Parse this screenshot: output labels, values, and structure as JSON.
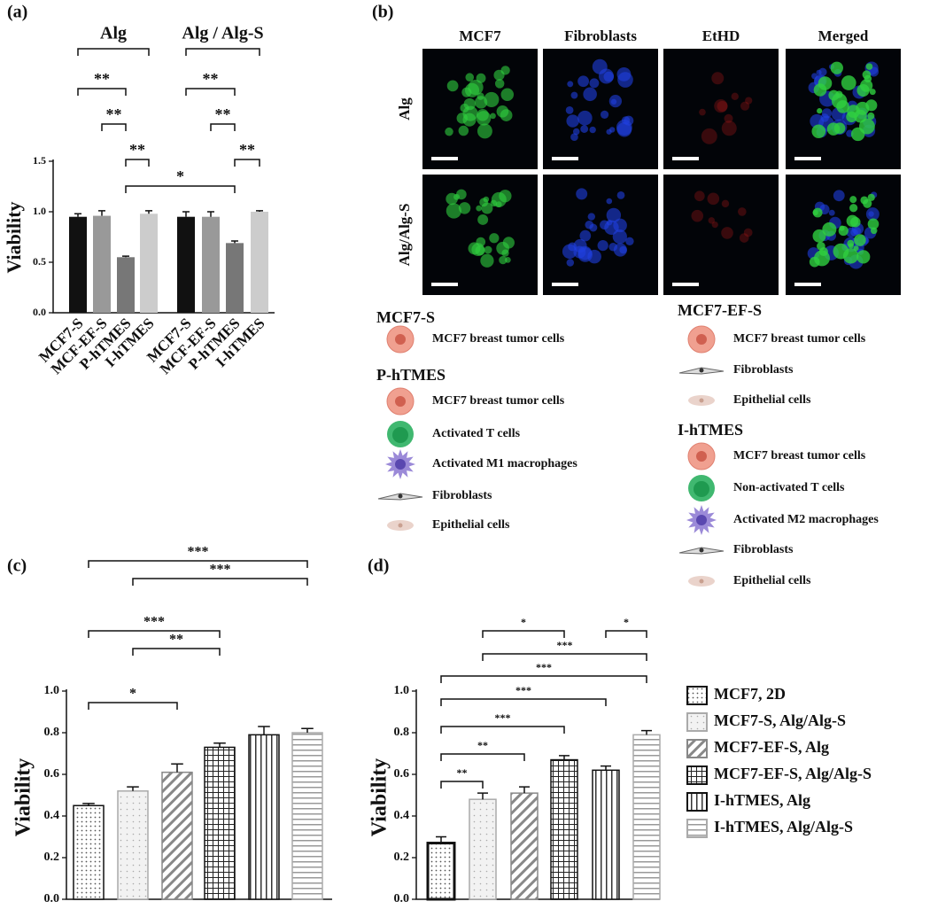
{
  "chart_data": [
    {
      "type": "bar",
      "panel_label": "(a)",
      "y_label": "Viability",
      "categories": [
        "MCF7-S",
        "MCF-EF-S",
        "P-hTMES",
        "I-hTMES",
        "MCF7-S",
        "MCF-EF-S",
        "P-hTMES",
        "I-hTMES"
      ],
      "values": [
        0.95,
        0.96,
        0.55,
        0.98,
        0.95,
        0.95,
        0.69,
        1.0
      ],
      "errors": [
        0.03,
        0.05,
        0.01,
        0.03,
        0.05,
        0.05,
        0.02,
        0.01
      ],
      "colors": [
        "#111111",
        "#999999",
        "#777777",
        "#cccccc",
        "#111111",
        "#999999",
        "#777777",
        "#cccccc"
      ],
      "ylim": [
        0,
        1.5
      ],
      "yticks": [
        {
          "value": 0,
          "label": "0.0"
        },
        {
          "value": 0.5,
          "label": "0.5"
        },
        {
          "value": 1,
          "label": "1.0"
        },
        1.5
      ],
      "groups": [
        {
          "label": "Alg",
          "from": 0,
          "to": 3
        },
        {
          "label": "Alg / Alg-S",
          "from": 4,
          "to": 7
        }
      ],
      "significance": [
        {
          "from": 0,
          "to": 2,
          "label": "**"
        },
        {
          "from": 1,
          "to": 2,
          "label": "**"
        },
        {
          "from": 2,
          "to": 3,
          "label": "**"
        },
        {
          "from": 4,
          "to": 6,
          "label": "**"
        },
        {
          "from": 5,
          "to": 6,
          "label": "**"
        },
        {
          "from": 6,
          "to": 7,
          "label": "**"
        },
        {
          "from": 2,
          "to": 6,
          "label": "*"
        }
      ]
    },
    {
      "type": "bar",
      "panel_label": "(c)",
      "y_label": "Viability",
      "values": [
        0.45,
        0.52,
        0.61,
        0.73,
        0.79,
        0.8
      ],
      "errors": [
        0.01,
        0.02,
        0.04,
        0.02,
        0.04,
        0.02
      ],
      "ylim": [
        0,
        1.0
      ],
      "yticks": [
        {
          "value": 0,
          "label": "0.0"
        },
        {
          "value": 0.2,
          "label": "0.2"
        },
        {
          "value": 0.4,
          "label": "0.4"
        },
        {
          "value": 0.6,
          "label": "0.6"
        },
        {
          "value": 0.8,
          "label": "0.8"
        },
        {
          "value": 1,
          "label": "1.0"
        }
      ],
      "significance": [
        {
          "from": 0,
          "to": 5,
          "label": "***"
        },
        {
          "from": 1,
          "to": 5,
          "label": "***"
        },
        {
          "from": 0,
          "to": 3,
          "label": "***"
        },
        {
          "from": 1,
          "to": 3,
          "label": "**"
        },
        {
          "from": 0,
          "to": 2,
          "label": "*"
        }
      ]
    },
    {
      "type": "bar",
      "panel_label": "(d)",
      "y_label": "Viability",
      "categories": [
        "MCF7, 2D",
        "MCF7-S, Alg/Alg-S",
        "MCF7-EF-S, Alg",
        "MCF7-EF-S, Alg/Alg-S",
        "I-hTMES, Alg",
        "I-hTMES, Alg/Alg-S"
      ],
      "values": [
        0.27,
        0.48,
        0.51,
        0.67,
        0.62,
        0.79
      ],
      "errors": [
        0.03,
        0.03,
        0.03,
        0.02,
        0.02,
        0.02
      ],
      "ylim": [
        0,
        1.0
      ],
      "yticks": [
        {
          "value": 0,
          "label": "0.0"
        },
        {
          "value": 0.2,
          "label": "0.2"
        },
        {
          "value": 0.4,
          "label": "0.4"
        },
        {
          "value": 0.6,
          "label": "0.6"
        },
        {
          "value": 0.8,
          "label": "0.8"
        },
        {
          "value": 1,
          "label": "1.0"
        }
      ],
      "significance": [
        {
          "from": 1,
          "to": 3,
          "label": "*"
        },
        {
          "from": 4,
          "to": 5,
          "label": "*"
        },
        {
          "from": 1,
          "to": 5,
          "label": "***"
        },
        {
          "from": 0,
          "to": 5,
          "label": "***"
        },
        {
          "from": 0,
          "to": 4,
          "label": "***"
        },
        {
          "from": 0,
          "to": 3,
          "label": "***"
        },
        {
          "from": 0,
          "to": 2,
          "label": "**"
        },
        {
          "from": 0,
          "to": 1,
          "label": "**"
        }
      ]
    }
  ],
  "panel_b": {
    "label": "(b)",
    "columns": [
      "MCF7",
      "Fibroblasts",
      "EtHD",
      "Merged"
    ],
    "rows": [
      "Alg",
      "Alg/Alg-S"
    ],
    "legend": [
      {
        "title": "MCF7-S",
        "items": [
          "MCF7 breast tumor cells"
        ]
      },
      {
        "title": "P-hTMES",
        "items": [
          "MCF7 breast tumor cells",
          "Activated T cells",
          "Activated M1 macrophages",
          "Fibroblasts",
          "Epithelial cells"
        ]
      },
      {
        "title": "MCF7-EF-S",
        "items": [
          "MCF7 breast tumor cells",
          "Fibroblasts",
          "Epithelial cells"
        ]
      },
      {
        "title": "I-hTMES",
        "items": [
          "MCF7 breast tumor cells",
          "Non-activated T cells",
          "Activated M2 macrophages",
          "Fibroblasts",
          "Epithelial cells"
        ]
      }
    ]
  }
}
